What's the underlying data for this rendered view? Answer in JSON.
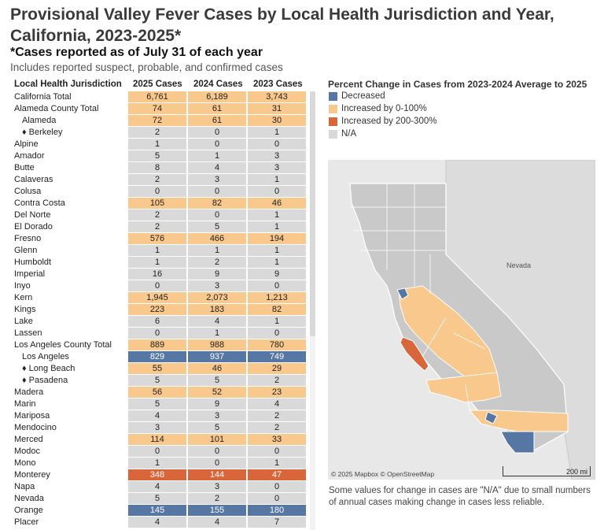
{
  "header": {
    "title": "Provisional Valley Fever Cases by Local Health Jurisdiction and Year, California, 2023-2025*",
    "subtitle": "*Cases reported as of July 31 of each year",
    "note": "Includes reported suspect, probable, and confirmed cases"
  },
  "colors": {
    "decreased": "#5677a4",
    "increased_0_100": "#f9c88d",
    "increased_200_300": "#d9653b",
    "na": "#d9d9d9"
  },
  "chart_data": {
    "type": "table",
    "columns": [
      "Local Health Jurisdiction",
      "2025 Cases",
      "2024 Cases",
      "2023 Cases"
    ],
    "rows": [
      {
        "name": "California Total",
        "indent": 0,
        "v2025": "6,761",
        "v2024": "6,189",
        "v2023": "3,743",
        "category": "increased_0_100"
      },
      {
        "name": "Alameda County Total",
        "indent": 0,
        "v2025": "74",
        "v2024": "61",
        "v2023": "31",
        "category": "increased_0_100"
      },
      {
        "name": "Alameda",
        "indent": 1,
        "v2025": "72",
        "v2024": "61",
        "v2023": "30",
        "category": "increased_0_100"
      },
      {
        "name": "♦ Berkeley",
        "indent": 2,
        "v2025": "2",
        "v2024": "0",
        "v2023": "1",
        "category": "na"
      },
      {
        "name": "Alpine",
        "indent": 0,
        "v2025": "1",
        "v2024": "0",
        "v2023": "0",
        "category": "na"
      },
      {
        "name": "Amador",
        "indent": 0,
        "v2025": "5",
        "v2024": "1",
        "v2023": "3",
        "category": "na"
      },
      {
        "name": "Butte",
        "indent": 0,
        "v2025": "8",
        "v2024": "4",
        "v2023": "3",
        "category": "na"
      },
      {
        "name": "Calaveras",
        "indent": 0,
        "v2025": "2",
        "v2024": "3",
        "v2023": "1",
        "category": "na"
      },
      {
        "name": "Colusa",
        "indent": 0,
        "v2025": "0",
        "v2024": "0",
        "v2023": "0",
        "category": "na"
      },
      {
        "name": "Contra Costa",
        "indent": 0,
        "v2025": "105",
        "v2024": "82",
        "v2023": "46",
        "category": "increased_0_100"
      },
      {
        "name": "Del Norte",
        "indent": 0,
        "v2025": "2",
        "v2024": "0",
        "v2023": "1",
        "category": "na"
      },
      {
        "name": "El Dorado",
        "indent": 0,
        "v2025": "2",
        "v2024": "5",
        "v2023": "1",
        "category": "na"
      },
      {
        "name": "Fresno",
        "indent": 0,
        "v2025": "576",
        "v2024": "466",
        "v2023": "194",
        "category": "increased_0_100"
      },
      {
        "name": "Glenn",
        "indent": 0,
        "v2025": "1",
        "v2024": "1",
        "v2023": "1",
        "category": "na"
      },
      {
        "name": "Humboldt",
        "indent": 0,
        "v2025": "1",
        "v2024": "2",
        "v2023": "1",
        "category": "na"
      },
      {
        "name": "Imperial",
        "indent": 0,
        "v2025": "16",
        "v2024": "9",
        "v2023": "9",
        "category": "na"
      },
      {
        "name": "Inyo",
        "indent": 0,
        "v2025": "0",
        "v2024": "3",
        "v2023": "0",
        "category": "na"
      },
      {
        "name": "Kern",
        "indent": 0,
        "v2025": "1,945",
        "v2024": "2,073",
        "v2023": "1,213",
        "category": "increased_0_100"
      },
      {
        "name": "Kings",
        "indent": 0,
        "v2025": "223",
        "v2024": "183",
        "v2023": "82",
        "category": "increased_0_100"
      },
      {
        "name": "Lake",
        "indent": 0,
        "v2025": "6",
        "v2024": "4",
        "v2023": "1",
        "category": "na"
      },
      {
        "name": "Lassen",
        "indent": 0,
        "v2025": "0",
        "v2024": "1",
        "v2023": "0",
        "category": "na"
      },
      {
        "name": "Los Angeles County Total",
        "indent": 0,
        "v2025": "889",
        "v2024": "988",
        "v2023": "780",
        "category": "increased_0_100"
      },
      {
        "name": "Los Angeles",
        "indent": 1,
        "v2025": "829",
        "v2024": "937",
        "v2023": "749",
        "category": "decreased"
      },
      {
        "name": "♦ Long Beach",
        "indent": 2,
        "v2025": "55",
        "v2024": "46",
        "v2023": "29",
        "category": "increased_0_100"
      },
      {
        "name": "♦ Pasadena",
        "indent": 2,
        "v2025": "5",
        "v2024": "5",
        "v2023": "2",
        "category": "na"
      },
      {
        "name": "Madera",
        "indent": 0,
        "v2025": "56",
        "v2024": "52",
        "v2023": "23",
        "category": "increased_0_100"
      },
      {
        "name": "Marin",
        "indent": 0,
        "v2025": "5",
        "v2024": "9",
        "v2023": "4",
        "category": "na"
      },
      {
        "name": "Mariposa",
        "indent": 0,
        "v2025": "4",
        "v2024": "3",
        "v2023": "2",
        "category": "na"
      },
      {
        "name": "Mendocino",
        "indent": 0,
        "v2025": "3",
        "v2024": "5",
        "v2023": "2",
        "category": "na"
      },
      {
        "name": "Merced",
        "indent": 0,
        "v2025": "114",
        "v2024": "101",
        "v2023": "33",
        "category": "increased_0_100"
      },
      {
        "name": "Modoc",
        "indent": 0,
        "v2025": "0",
        "v2024": "0",
        "v2023": "0",
        "category": "na"
      },
      {
        "name": "Mono",
        "indent": 0,
        "v2025": "1",
        "v2024": "0",
        "v2023": "1",
        "category": "na"
      },
      {
        "name": "Monterey",
        "indent": 0,
        "v2025": "348",
        "v2024": "144",
        "v2023": "47",
        "category": "increased_200_300"
      },
      {
        "name": "Napa",
        "indent": 0,
        "v2025": "4",
        "v2024": "3",
        "v2023": "0",
        "category": "na"
      },
      {
        "name": "Nevada",
        "indent": 0,
        "v2025": "5",
        "v2024": "2",
        "v2023": "0",
        "category": "na"
      },
      {
        "name": "Orange",
        "indent": 0,
        "v2025": "145",
        "v2024": "155",
        "v2023": "180",
        "category": "decreased"
      },
      {
        "name": "Placer",
        "indent": 0,
        "v2025": "4",
        "v2024": "4",
        "v2023": "7",
        "category": "na"
      }
    ]
  },
  "legend": {
    "title": "Percent Change in Cases from 2023-2024 Average to 2025",
    "items": [
      {
        "label": "Decreased",
        "key": "decreased"
      },
      {
        "label": "Increased by 0-100%",
        "key": "increased_0_100"
      },
      {
        "label": "Increased by 200-300%",
        "key": "increased_200_300"
      },
      {
        "label": "N/A",
        "key": "na"
      }
    ]
  },
  "map": {
    "state_label": "Nevada",
    "credit": "© 2025 Mapbox © OpenStreetMap",
    "scale_label": "200 mi"
  },
  "footnote": "Some values for change in cases are \"N/A\" due to small numbers of annual cases making change in cases less reliable."
}
